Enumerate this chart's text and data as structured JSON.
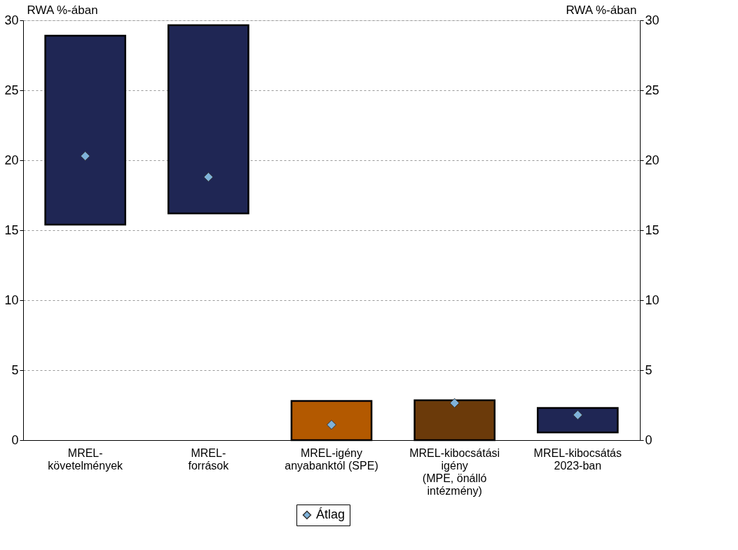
{
  "chart_data": {
    "type": "bar",
    "categories": [
      "MREL-\nkövetelmények",
      "MREL-\nforrások",
      "MREL-igény\nanyabanktól (SPE)",
      "MREL-kibocsátási\nigény\n(MPE, önálló\nintézmény)",
      "MREL-kibocsátás\n2023-ban"
    ],
    "series": [
      {
        "values": [
          13.5,
          13.45,
          2.8,
          2.85,
          1.75
        ],
        "base": [
          15.4,
          16.2,
          0,
          0,
          0.55
        ],
        "colors": [
          "#1f2654",
          "#1f2654",
          "#b35900",
          "#6b3a0a",
          "#1f2654"
        ]
      },
      {
        "type": "scatter",
        "name": "Átlag",
        "color": "#7fb2d9",
        "marker": "diamond",
        "values": [
          20.3,
          18.8,
          1.1,
          2.65,
          1.8
        ]
      }
    ],
    "ylabel": "RWA %-ában",
    "y2label": "RWA %-ában",
    "ylim": [
      0,
      30
    ],
    "yticks": [
      0,
      5,
      10,
      15,
      20,
      25,
      30
    ],
    "y2lim": [
      0,
      30
    ],
    "y2ticks": [
      0,
      5,
      10,
      15,
      20,
      25,
      30
    ],
    "grid": "y",
    "legend": "bottom"
  }
}
